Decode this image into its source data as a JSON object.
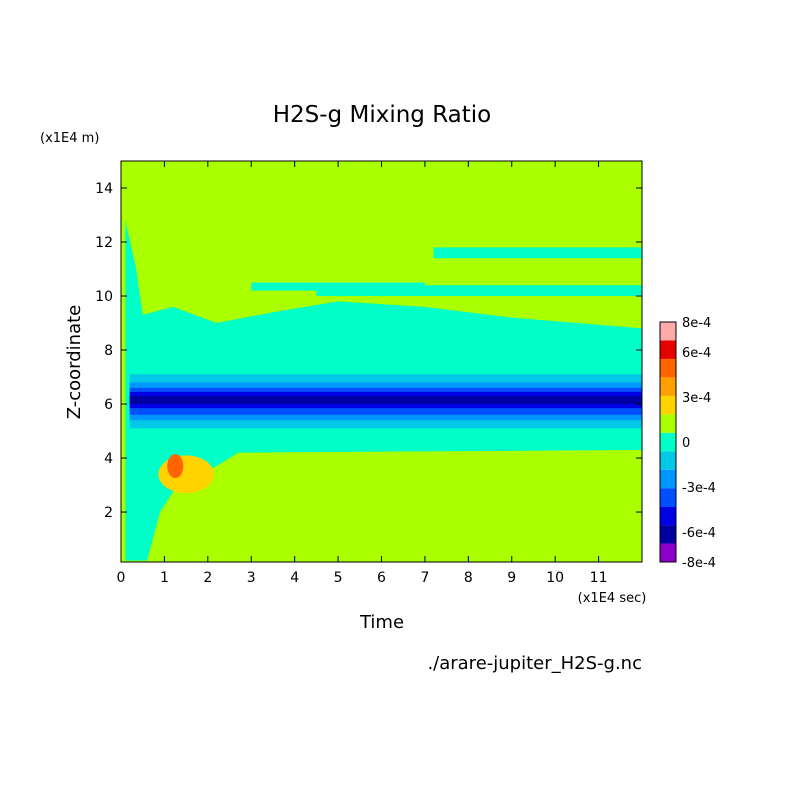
{
  "chart_data": {
    "type": "heatmap",
    "title": "H2S-g Mixing Ratio",
    "xlabel": "Time",
    "ylabel": "Z-coordinate",
    "x_units": "(x1E4 sec)",
    "y_units": "(x1E4 m)",
    "source_file": "./arare-jupiter_H2S-g.nc",
    "xlim": [
      0,
      12
    ],
    "ylim": [
      0.15,
      15
    ],
    "x_ticks": [
      "0",
      "1",
      "2",
      "3",
      "4",
      "5",
      "6",
      "7",
      "8",
      "9",
      "10",
      "11"
    ],
    "y_ticks": [
      "2",
      "4",
      "6",
      "8",
      "10",
      "12",
      "14"
    ],
    "colorbar": {
      "range": [
        -0.0008,
        0.0008
      ],
      "tick_labels": [
        "8e-4",
        "6e-4",
        "3e-4",
        "0",
        "-3e-4",
        "-6e-4",
        "-8e-4"
      ],
      "colors": [
        "#8a00c8",
        "#0000a0",
        "#0000e6",
        "#0050ff",
        "#0096ff",
        "#00c8e6",
        "#00ffc8",
        "#aaff00",
        "#ffd200",
        "#ffa000",
        "#ff6400",
        "#e60000",
        "#ffaaaa"
      ]
    },
    "background_level": "0",
    "features": [
      {
        "name": "negative band",
        "z_center": 6.1,
        "z_half_width": 0.9,
        "t_start": 0.1,
        "t_end": 12,
        "min_value": -0.0007
      },
      {
        "name": "upper weak negative layer",
        "z_range": [
          4.4,
          8.8
        ],
        "min_value": -0.00015
      },
      {
        "name": "positive blob",
        "t": 1.3,
        "z": 3.6,
        "max_value": 0.0006
      }
    ]
  }
}
